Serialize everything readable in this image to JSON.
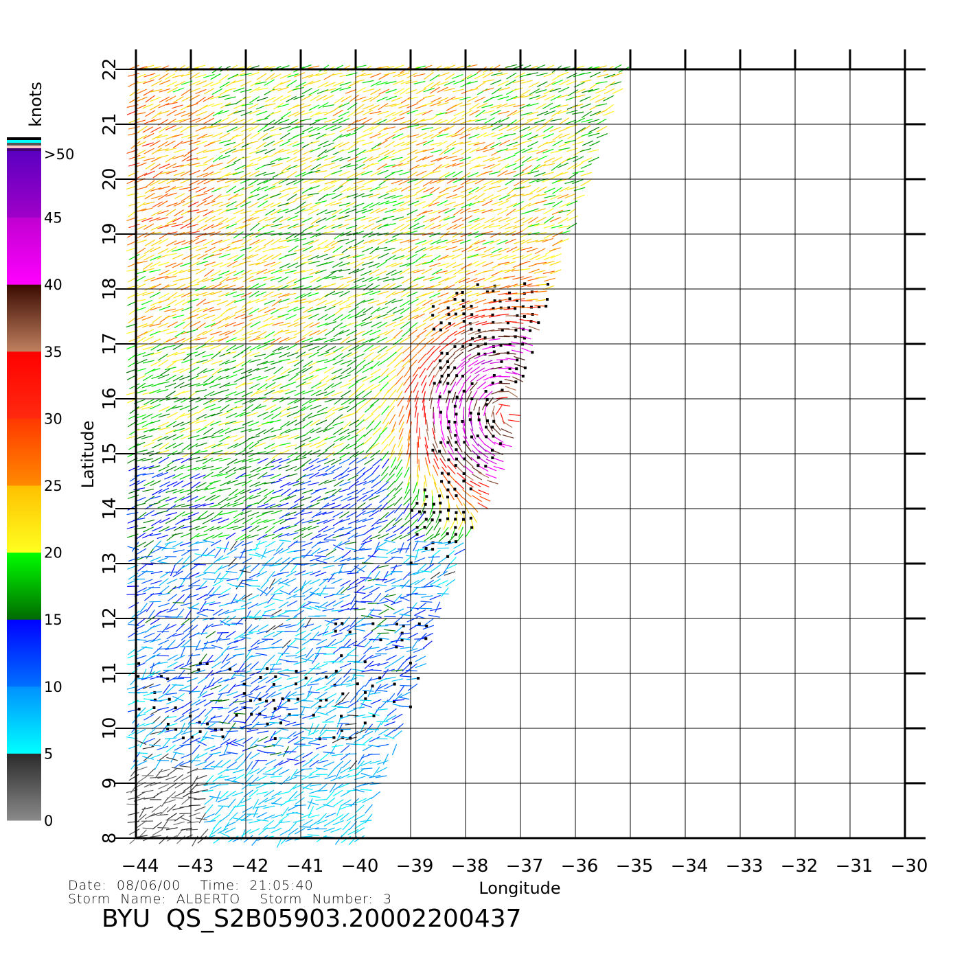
{
  "chart_data": {
    "type": "vector-field",
    "title": "BYU  QS_S2B05903.20002200437",
    "xlabel": "Longitude",
    "ylabel": "Latitude",
    "xlim": [
      -44,
      -30
    ],
    "ylim": [
      8,
      22
    ],
    "x_ticks": [
      "−44",
      "−43",
      "−42",
      "−41",
      "−40",
      "−39",
      "−38",
      "−37",
      "−36",
      "−35",
      "−34",
      "−33",
      "−32",
      "−31",
      "−30"
    ],
    "y_ticks": [
      "8",
      "9",
      "10",
      "11",
      "12",
      "13",
      "14",
      "15",
      "16",
      "17",
      "18",
      "19",
      "20",
      "21",
      "22"
    ],
    "grid": true,
    "swath_right_edge": [
      [
        -35.0,
        22
      ],
      [
        -39.8,
        8
      ]
    ],
    "storm_center": {
      "lon": -37.2,
      "lat": 15.8
    },
    "speed_regions_knots": [
      {
        "lat_range": [
          17,
          22
        ],
        "speed": [
          17,
          26
        ]
      },
      {
        "lat_range": [
          15,
          17
        ],
        "speed": [
          15,
          22
        ]
      },
      {
        "lat_range": [
          13.5,
          15
        ],
        "speed": [
          12,
          18
        ]
      },
      {
        "lat_range": [
          9,
          13.5
        ],
        "speed": [
          6,
          14
        ]
      },
      {
        "lat_range": [
          8,
          9.3
        ],
        "speed": [
          1,
          5
        ]
      }
    ],
    "storm_max_speed_knots": 48,
    "colorbar": {
      "unit": "knots",
      "labels": [
        "0",
        "5",
        "10",
        "15",
        "20",
        "25",
        "30",
        "35",
        "40",
        "45",
        ">50"
      ],
      "bands": [
        {
          "from": 0,
          "to": 5,
          "colors": [
            "#8a8a8a",
            "#2a2a2a"
          ]
        },
        {
          "from": 5,
          "to": 10,
          "colors": [
            "#00ffff",
            "#0090ff"
          ]
        },
        {
          "from": 10,
          "to": 15,
          "colors": [
            "#0070ff",
            "#0000ff"
          ]
        },
        {
          "from": 15,
          "to": 20,
          "colors": [
            "#006a00",
            "#00ff00"
          ]
        },
        {
          "from": 20,
          "to": 25,
          "colors": [
            "#ffff20",
            "#ffc000"
          ]
        },
        {
          "from": 25,
          "to": 30,
          "colors": [
            "#ff8a00",
            "#ff3800"
          ]
        },
        {
          "from": 30,
          "to": 35,
          "colors": [
            "#ff2a10",
            "#ff0000"
          ]
        },
        {
          "from": 35,
          "to": 40,
          "colors": [
            "#c08060",
            "#3a0a00"
          ]
        },
        {
          "from": 40,
          "to": 45,
          "colors": [
            "#ff00ff",
            "#c000d0"
          ]
        },
        {
          "from": 45,
          "to": 50,
          "colors": [
            "#a000c8",
            "#5a00c0"
          ]
        }
      ],
      "top_stripes": [
        "#000000",
        "#00ffff",
        "#555555",
        "#ffc8c8",
        "#400070"
      ]
    }
  },
  "info": {
    "date_line": "Date:  08/06/00    Time:  21:05:40",
    "storm_line": "Storm  Name:  ALBERTO    Storm  Number:  3"
  },
  "title": "BYU  QS_S2B05903.20002200437"
}
